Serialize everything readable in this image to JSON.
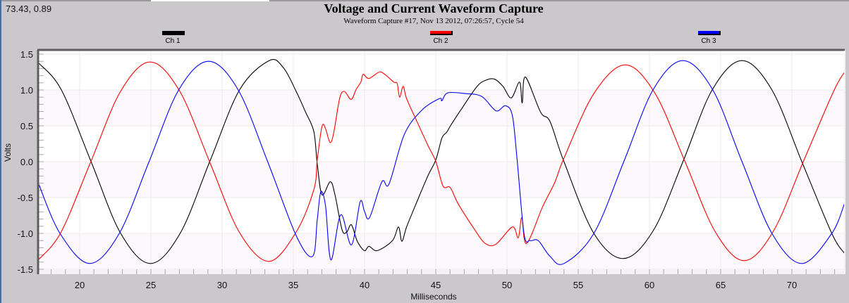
{
  "cursor_readout": "73.43, 0.89",
  "chart_data": {
    "type": "line",
    "title": "Voltage and Current Waveform Capture",
    "subtitle": "Waveform Capture #17, Nov 13 2012, 07:26:57,  Cycle 54",
    "xlabel": "Milliseconds",
    "ylabel": "Volts",
    "xlim": [
      17.1,
      73.7
    ],
    "ylim": [
      -1.5,
      1.5
    ],
    "xticks": [
      20,
      25,
      30,
      35,
      40,
      45,
      50,
      55,
      60,
      65,
      70
    ],
    "yticks": [
      "1.5",
      "1.0",
      "0.5",
      "0.0",
      "-0.5",
      "-1.0",
      "-1.5"
    ],
    "grid": true,
    "legend": "top",
    "series": [
      {
        "name": "Ch 1",
        "color": "#000000",
        "points": [
          [
            17.1,
            1.38
          ],
          [
            18.72,
            1.0
          ],
          [
            20.8,
            0
          ],
          [
            22.88,
            -1.0
          ],
          [
            24.97,
            -1.42
          ],
          [
            27.05,
            -1.0
          ],
          [
            29.13,
            0
          ],
          [
            31.22,
            1.0
          ],
          [
            33.3,
            1.41
          ],
          [
            34.3,
            1.31
          ],
          [
            35.2,
            0.98
          ],
          [
            35.86,
            0.69
          ],
          [
            36.44,
            0.42
          ],
          [
            36.68,
            -0.03
          ],
          [
            37.01,
            -0.46
          ],
          [
            37.59,
            -0.28
          ],
          [
            37.92,
            -0.46
          ],
          [
            38.42,
            -0.95
          ],
          [
            38.75,
            -0.98
          ],
          [
            39.08,
            -0.88
          ],
          [
            39.49,
            -1.11
          ],
          [
            39.99,
            -1.24
          ],
          [
            40.31,
            -1.18
          ],
          [
            40.89,
            -1.24
          ],
          [
            41.96,
            -1.1
          ],
          [
            42.38,
            -0.91
          ],
          [
            42.62,
            -1.11
          ],
          [
            42.95,
            -0.91
          ],
          [
            43.61,
            -0.59
          ],
          [
            44.44,
            -0.2
          ],
          [
            45.01,
            0.03
          ],
          [
            45.43,
            0.33
          ],
          [
            45.76,
            0.41
          ],
          [
            46.09,
            0.52
          ],
          [
            46.75,
            0.72
          ],
          [
            47.9,
            1.05
          ],
          [
            48.56,
            1.14
          ],
          [
            49.14,
            1.15
          ],
          [
            49.72,
            1.05
          ],
          [
            50.3,
            0.89
          ],
          [
            50.88,
            1.11
          ],
          [
            51.07,
            0.82
          ],
          [
            51.29,
            1.18
          ],
          [
            52.36,
            0.69
          ],
          [
            53.02,
            0.56
          ],
          [
            54.0,
            0.0
          ],
          [
            56.1,
            -1.0
          ],
          [
            58.2,
            -1.35
          ],
          [
            60.3,
            -0.95
          ],
          [
            62.35,
            0
          ],
          [
            64.4,
            1.0
          ],
          [
            66.5,
            1.41
          ],
          [
            68.6,
            1.0
          ],
          [
            70.7,
            0
          ],
          [
            72.8,
            -1.0
          ],
          [
            73.7,
            -1.28
          ]
        ]
      },
      {
        "name": "Ch 2",
        "color": "#ff0000",
        "points": [
          [
            17.1,
            -1.37
          ],
          [
            18.7,
            -0.98
          ],
          [
            20.78,
            0
          ],
          [
            22.87,
            0.98
          ],
          [
            24.95,
            1.39
          ],
          [
            27.03,
            0.98
          ],
          [
            29.12,
            0
          ],
          [
            31.2,
            -0.98
          ],
          [
            33.28,
            -1.39
          ],
          [
            35.2,
            -0.98
          ],
          [
            36.44,
            -0.39
          ],
          [
            36.68,
            0.03
          ],
          [
            37.01,
            0.49
          ],
          [
            37.26,
            0.46
          ],
          [
            37.57,
            0.27
          ],
          [
            37.82,
            0.39
          ],
          [
            38.25,
            0.88
          ],
          [
            38.58,
            0.98
          ],
          [
            39.06,
            0.87
          ],
          [
            39.41,
            1.01
          ],
          [
            39.74,
            1.11
          ],
          [
            39.9,
            1.22
          ],
          [
            40.3,
            1.16
          ],
          [
            41.04,
            1.25
          ],
          [
            41.47,
            1.21
          ],
          [
            42.05,
            1.11
          ],
          [
            42.29,
            1.09
          ],
          [
            42.46,
            0.9
          ],
          [
            42.71,
            1.05
          ],
          [
            42.95,
            0.88
          ],
          [
            43.61,
            0.59
          ],
          [
            44.44,
            0.23
          ],
          [
            45.01,
            0.0
          ],
          [
            45.51,
            -0.34
          ],
          [
            46.01,
            -0.36
          ],
          [
            46.58,
            -0.59
          ],
          [
            47.74,
            -0.95
          ],
          [
            48.48,
            -1.14
          ],
          [
            49.23,
            -1.15
          ],
          [
            50.38,
            -0.91
          ],
          [
            50.79,
            -1.06
          ],
          [
            51.04,
            -0.78
          ],
          [
            51.37,
            -1.14
          ],
          [
            52.52,
            -0.62
          ],
          [
            53.35,
            -0.29
          ],
          [
            54.0,
            0.05
          ],
          [
            56.1,
            0.95
          ],
          [
            58.3,
            1.35
          ],
          [
            60.4,
            0.95
          ],
          [
            62.5,
            0
          ],
          [
            64.6,
            -0.97
          ],
          [
            66.65,
            -1.38
          ],
          [
            68.7,
            -0.97
          ],
          [
            70.8,
            0
          ],
          [
            72.9,
            0.97
          ],
          [
            73.7,
            1.25
          ]
        ]
      },
      {
        "name": "Ch 3",
        "color": "#0000ff",
        "points": [
          [
            17.1,
            -0.3
          ],
          [
            18.62,
            -1.0
          ],
          [
            20.7,
            -1.42
          ],
          [
            22.78,
            -1.0
          ],
          [
            24.87,
            0
          ],
          [
            26.95,
            1.0
          ],
          [
            29.05,
            1.4
          ],
          [
            31.13,
            1.0
          ],
          [
            33.2,
            0
          ],
          [
            35.2,
            -1.03
          ],
          [
            36.35,
            -1.32
          ],
          [
            36.68,
            -0.81
          ],
          [
            36.93,
            -0.42
          ],
          [
            37.26,
            -0.62
          ],
          [
            37.64,
            -1.37
          ],
          [
            38.33,
            -0.74
          ],
          [
            39.08,
            -1.16
          ],
          [
            39.69,
            -0.56
          ],
          [
            39.99,
            -0.69
          ],
          [
            40.35,
            -0.78
          ],
          [
            41.22,
            -0.28
          ],
          [
            41.72,
            -0.31
          ],
          [
            42.79,
            0.38
          ],
          [
            44.03,
            0.72
          ],
          [
            45.26,
            0.88
          ],
          [
            45.43,
            0.85
          ],
          [
            45.84,
            0.96
          ],
          [
            47.08,
            0.95
          ],
          [
            48.23,
            0.91
          ],
          [
            49.23,
            0.71
          ],
          [
            49.89,
            0.78
          ],
          [
            50.38,
            0.64
          ],
          [
            50.71,
            0.03
          ],
          [
            51.2,
            -1.01
          ],
          [
            51.62,
            -1.1
          ],
          [
            52.19,
            -1.1
          ],
          [
            53.02,
            -1.32
          ],
          [
            54.0,
            -1.42
          ],
          [
            56.1,
            -1.0
          ],
          [
            58.2,
            0
          ],
          [
            60.25,
            1.0
          ],
          [
            62.35,
            1.41
          ],
          [
            64.45,
            1.0
          ],
          [
            66.5,
            0
          ],
          [
            68.6,
            -1.0
          ],
          [
            70.7,
            -1.42
          ],
          [
            72.8,
            -1.0
          ],
          [
            73.7,
            -0.58
          ]
        ]
      }
    ]
  }
}
